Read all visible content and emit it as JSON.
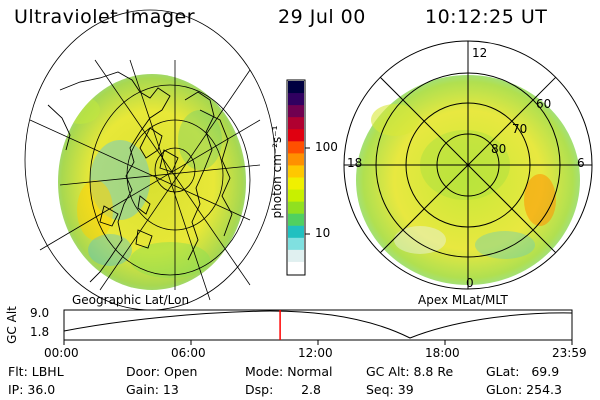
{
  "header": {
    "instrument": "Ultraviolet Imager",
    "date": "29 Jul 00",
    "time": "10:12:25 UT"
  },
  "left_panel": {
    "label": "Geographic Lat/Lon"
  },
  "right_panel": {
    "label": "Apex MLat/MLT",
    "mlt_labels": [
      "12",
      "18",
      "6",
      "0"
    ],
    "lat_labels": [
      "60",
      "70",
      "80"
    ]
  },
  "colorbar": {
    "unit_label": "photon cm⁻²s⁻¹",
    "tick_labels": [
      "100",
      "10"
    ],
    "colors": [
      "#000040",
      "#300060",
      "#700050",
      "#b00030",
      "#e00010",
      "#ff5000",
      "#ff9000",
      "#ffc800",
      "#f0f000",
      "#c8f000",
      "#90e020",
      "#50d060",
      "#20c0c0",
      "#80e0e0",
      "#e0f0f0",
      "#ffffff"
    ]
  },
  "altitude_plot": {
    "ylabel": "GC Alt",
    "y_ticks": [
      "9.0",
      "1.8"
    ],
    "x_ticks": [
      "00:00",
      "06:00",
      "12:00",
      "18:00",
      "23:59"
    ],
    "current_time_fraction": 0.4253,
    "marker_color": "#ff0000"
  },
  "info": {
    "flt": "Flt: LBHL",
    "ip": "IP: 36.0",
    "door": "Door: Open",
    "gain": "Gain: 13",
    "mode": "Mode: Normal",
    "dsp": "Dsp:       2.8",
    "gc_alt": "GC Alt: 8.8 Re",
    "seq": "Seq: 39",
    "glat": "GLat:   69.9",
    "glon": "GLon: 254.3"
  }
}
